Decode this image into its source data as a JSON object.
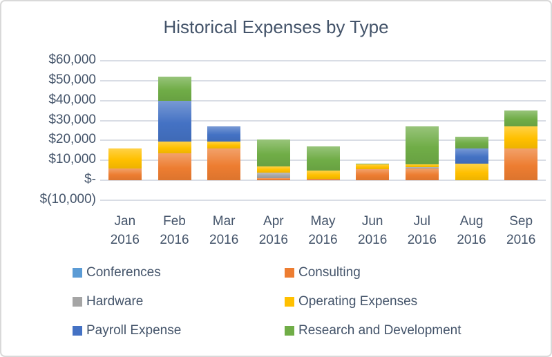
{
  "chart_data": {
    "type": "bar",
    "stacked": true,
    "title": "Historical Expenses by Type",
    "xlabel": "",
    "ylabel": "",
    "ylim": [
      -10000,
      60000
    ],
    "grid": true,
    "legend_position": "bottom",
    "legend_columns": 2,
    "text_color": "#44546A",
    "grid_color": "#D9DDE5",
    "categories": [
      "Jan 2016",
      "Feb 2016",
      "Mar 2016",
      "Apr 2016",
      "May 2016",
      "Jun 2016",
      "Jul 2016",
      "Aug 2016",
      "Sep 2016"
    ],
    "y_ticks": [
      {
        "label": "$60,000",
        "value": 60000
      },
      {
        "label": "$50,000",
        "value": 50000
      },
      {
        "label": "$40,000",
        "value": 40000
      },
      {
        "label": "$30,000",
        "value": 30000
      },
      {
        "label": "$20,000",
        "value": 20000
      },
      {
        "label": "$10,000",
        "value": 10000
      },
      {
        "label": "$-",
        "value": 0
      },
      {
        "label": "$(10,000)",
        "value": -10000
      }
    ],
    "series": [
      {
        "name": "Conferences",
        "color": "#5B9BD5",
        "values": [
          0,
          0,
          0,
          0,
          0,
          0,
          0,
          0,
          0
        ]
      },
      {
        "name": "Consulting",
        "color": "#ED7D31",
        "values": [
          6000,
          13500,
          16000,
          1000,
          750,
          5500,
          6000,
          0,
          16000
        ]
      },
      {
        "name": "Hardware",
        "color": "#A5A5A5",
        "values": [
          0,
          0,
          0,
          3000,
          0,
          0,
          500,
          0,
          0
        ]
      },
      {
        "name": "Operating Expenses",
        "color": "#FFC000",
        "values": [
          10000,
          6000,
          3500,
          3000,
          4000,
          2500,
          1500,
          8500,
          11000
        ]
      },
      {
        "name": "Payroll Expense",
        "color": "#4472C4",
        "values": [
          0,
          20500,
          7500,
          0,
          0,
          0,
          0,
          7500,
          0
        ]
      },
      {
        "name": "Research and Development",
        "color": "#70AD47",
        "values": [
          0,
          12000,
          0,
          13500,
          12250,
          500,
          19000,
          6000,
          8000
        ]
      }
    ],
    "monthly_totals": [
      16000,
      52000,
      27000,
      20500,
      17000,
      8500,
      27000,
      22000,
      35000
    ]
  }
}
